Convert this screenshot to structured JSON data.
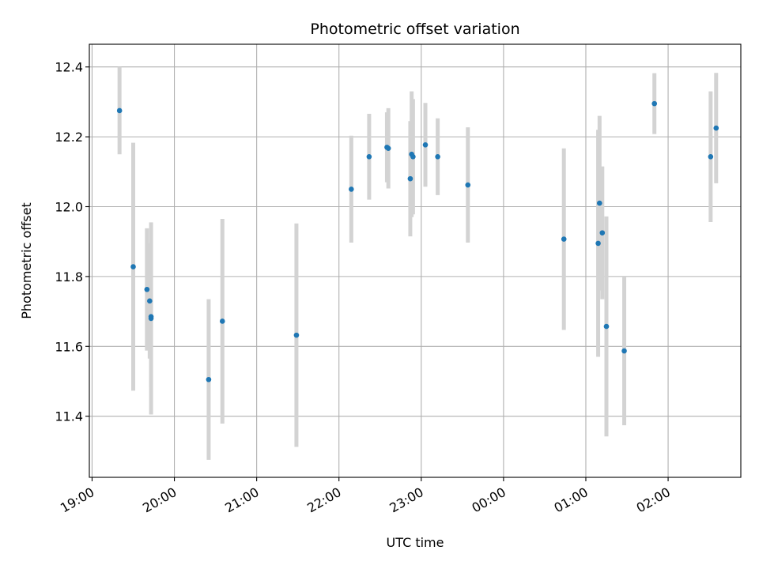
{
  "chart_data": {
    "type": "scatter",
    "title": "Photometric offset variation",
    "xlabel": "UTC time",
    "ylabel": "Photometric offset",
    "x_time_range": [
      "18:58",
      "26:53"
    ],
    "ylim": [
      11.225,
      12.465
    ],
    "x_ticks": [
      "19:00",
      "20:00",
      "21:00",
      "22:00",
      "23:00",
      "00:00",
      "01:00",
      "02:00"
    ],
    "x_tick_rotation_deg": 30,
    "y_ticks": [
      "11.4",
      "11.6",
      "11.8",
      "12.0",
      "12.2",
      "12.4"
    ],
    "grid": true,
    "colors": {
      "marker": "#1f77b4",
      "errorbar": "#d3d3d3",
      "grid": "#b0b0b0"
    },
    "points": [
      {
        "time": "19:20",
        "y": 12.275,
        "yerr": 0.125
      },
      {
        "time": "19:30",
        "y": 11.828,
        "yerr": 0.355
      },
      {
        "time": "19:40",
        "y": 11.763,
        "yerr": 0.175
      },
      {
        "time": "19:42",
        "y": 11.73,
        "yerr": 0.165
      },
      {
        "time": "19:43",
        "y": 11.685,
        "yerr": 0.2
      },
      {
        "time": "19:43",
        "y": 11.68,
        "yerr": 0.275
      },
      {
        "time": "20:25",
        "y": 11.505,
        "yerr": 0.23
      },
      {
        "time": "20:35",
        "y": 11.672,
        "yerr": 0.293
      },
      {
        "time": "21:29",
        "y": 11.632,
        "yerr": 0.32
      },
      {
        "time": "22:09",
        "y": 12.05,
        "yerr": 0.153
      },
      {
        "time": "22:22",
        "y": 12.143,
        "yerr": 0.123
      },
      {
        "time": "22:35",
        "y": 12.17,
        "yerr": 0.1
      },
      {
        "time": "22:36",
        "y": 12.167,
        "yerr": 0.115
      },
      {
        "time": "22:52",
        "y": 12.08,
        "yerr": 0.165
      },
      {
        "time": "22:53",
        "y": 12.15,
        "yerr": 0.18
      },
      {
        "time": "22:54",
        "y": 12.143,
        "yerr": 0.165
      },
      {
        "time": "23:03",
        "y": 12.177,
        "yerr": 0.12
      },
      {
        "time": "23:12",
        "y": 12.143,
        "yerr": 0.11
      },
      {
        "time": "23:34",
        "y": 12.062,
        "yerr": 0.165
      },
      {
        "time": "00:44",
        "y": 11.907,
        "yerr": 0.26
      },
      {
        "time": "01:09",
        "y": 11.895,
        "yerr": 0.325
      },
      {
        "time": "01:10",
        "y": 12.01,
        "yerr": 0.25
      },
      {
        "time": "01:12",
        "y": 11.925,
        "yerr": 0.19
      },
      {
        "time": "01:15",
        "y": 11.657,
        "yerr": 0.315
      },
      {
        "time": "01:28",
        "y": 11.587,
        "yerr": 0.213
      },
      {
        "time": "01:50",
        "y": 12.295,
        "yerr": 0.087
      },
      {
        "time": "02:31",
        "y": 12.143,
        "yerr": 0.187
      },
      {
        "time": "02:35",
        "y": 12.225,
        "yerr": 0.158
      }
    ]
  }
}
